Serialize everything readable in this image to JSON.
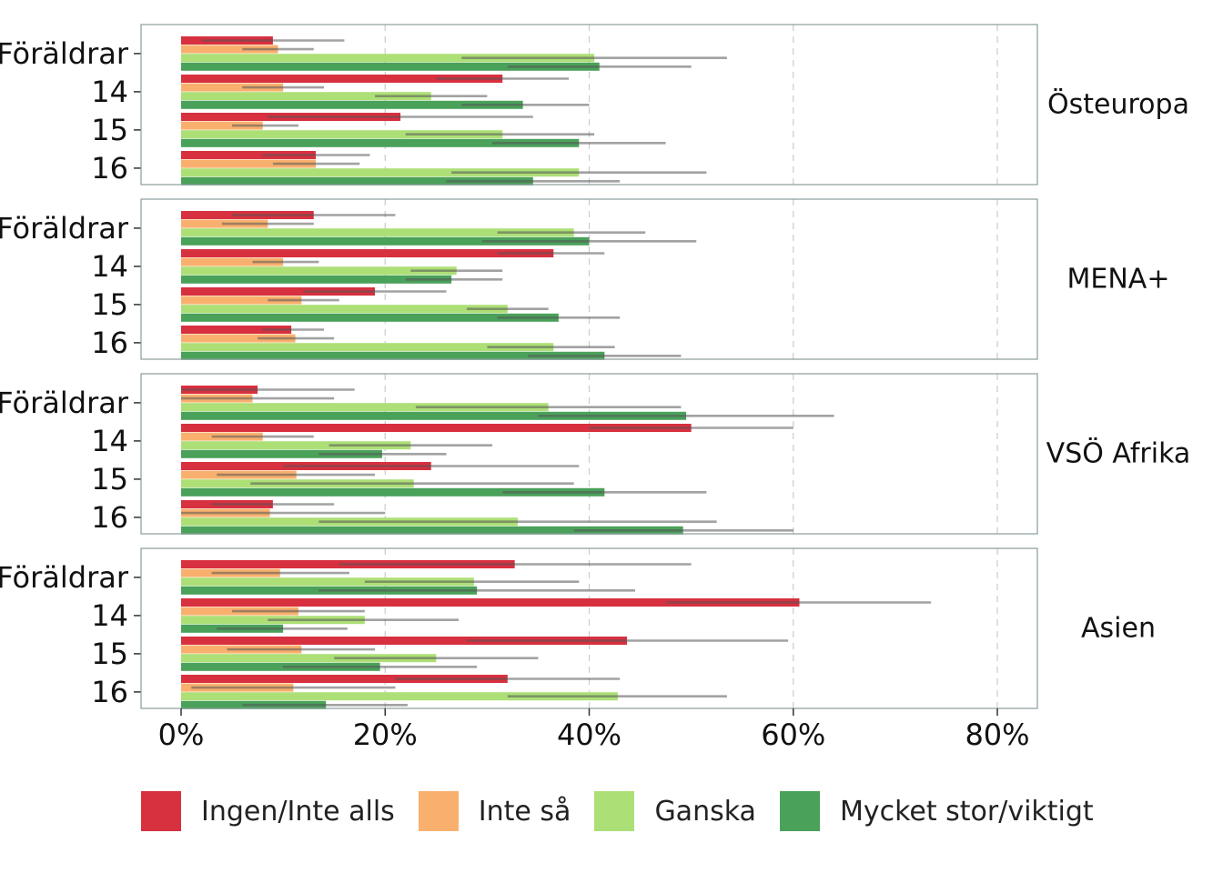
{
  "chart_data": {
    "type": "bar",
    "orientation": "horizontal",
    "x_axis": {
      "min": 0,
      "max": 0.84,
      "ticks": [
        0,
        0.2,
        0.4,
        0.6,
        0.8
      ],
      "tick_labels": [
        "0%",
        "20%",
        "40%",
        "60%",
        "80%"
      ],
      "grid": "dashed-vertical"
    },
    "groups": [
      "Föräldrar",
      "14",
      "15",
      "16"
    ],
    "series": [
      {
        "name": "Ingen/Inte alls",
        "color": "#d7303f"
      },
      {
        "name": "Inte så",
        "color": "#f9b06e"
      },
      {
        "name": "Ganska",
        "color": "#addf77"
      },
      {
        "name": "Mycket stor/viktigt",
        "color": "#4aa15a"
      }
    ],
    "panels": [
      {
        "label": "Östeuropa",
        "values": [
          [
            0.09,
            0.095,
            0.405,
            0.41
          ],
          [
            0.315,
            0.1,
            0.245,
            0.335
          ],
          [
            0.215,
            0.08,
            0.315,
            0.39
          ],
          [
            0.132,
            0.132,
            0.39,
            0.345
          ]
        ],
        "ci": [
          [
            [
              0.02,
              0.16
            ],
            [
              0.06,
              0.13
            ],
            [
              0.275,
              0.535
            ],
            [
              0.32,
              0.5
            ]
          ],
          [
            [
              0.25,
              0.38
            ],
            [
              0.06,
              0.14
            ],
            [
              0.19,
              0.3
            ],
            [
              0.275,
              0.4
            ]
          ],
          [
            [
              0.085,
              0.345
            ],
            [
              0.05,
              0.115
            ],
            [
              0.22,
              0.405
            ],
            [
              0.305,
              0.475
            ]
          ],
          [
            [
              0.08,
              0.185
            ],
            [
              0.09,
              0.175
            ],
            [
              0.265,
              0.515
            ],
            [
              0.26,
              0.43
            ]
          ]
        ]
      },
      {
        "label": "MENA+",
        "values": [
          [
            0.13,
            0.085,
            0.385,
            0.4
          ],
          [
            0.365,
            0.1,
            0.27,
            0.265
          ],
          [
            0.19,
            0.118,
            0.32,
            0.37
          ],
          [
            0.108,
            0.112,
            0.365,
            0.415
          ]
        ],
        "ci": [
          [
            [
              0.05,
              0.21
            ],
            [
              0.04,
              0.13
            ],
            [
              0.31,
              0.455
            ],
            [
              0.295,
              0.505
            ]
          ],
          [
            [
              0.31,
              0.415
            ],
            [
              0.07,
              0.135
            ],
            [
              0.225,
              0.315
            ],
            [
              0.22,
              0.315
            ]
          ],
          [
            [
              0.12,
              0.26
            ],
            [
              0.085,
              0.155
            ],
            [
              0.28,
              0.36
            ],
            [
              0.31,
              0.43
            ]
          ],
          [
            [
              0.08,
              0.14
            ],
            [
              0.075,
              0.15
            ],
            [
              0.3,
              0.425
            ],
            [
              0.34,
              0.49
            ]
          ]
        ]
      },
      {
        "label": "VSÖ Afrika",
        "values": [
          [
            0.075,
            0.07,
            0.36,
            0.495
          ],
          [
            0.5,
            0.08,
            0.225,
            0.197
          ],
          [
            0.245,
            0.113,
            0.228,
            0.415
          ],
          [
            0.09,
            0.087,
            0.33,
            0.492
          ]
        ],
        "ci": [
          [
            [
              0.0,
              0.17
            ],
            [
              0.0,
              0.15
            ],
            [
              0.23,
              0.49
            ],
            [
              0.35,
              0.64
            ]
          ],
          [
            [
              0.4,
              0.6
            ],
            [
              0.03,
              0.13
            ],
            [
              0.145,
              0.305
            ],
            [
              0.135,
              0.26
            ]
          ],
          [
            [
              0.1,
              0.39
            ],
            [
              0.035,
              0.19
            ],
            [
              0.068,
              0.385
            ],
            [
              0.315,
              0.515
            ]
          ],
          [
            [
              0.03,
              0.15
            ],
            [
              0.0,
              0.2
            ],
            [
              0.135,
              0.525
            ],
            [
              0.385,
              0.6
            ]
          ]
        ]
      },
      {
        "label": "Asien",
        "values": [
          [
            0.327,
            0.097,
            0.287,
            0.29
          ],
          [
            0.606,
            0.115,
            0.18,
            0.1
          ],
          [
            0.437,
            0.118,
            0.25,
            0.195
          ],
          [
            0.32,
            0.11,
            0.428,
            0.142
          ]
        ],
        "ci": [
          [
            [
              0.155,
              0.5
            ],
            [
              0.03,
              0.165
            ],
            [
              0.18,
              0.39
            ],
            [
              0.135,
              0.445
            ]
          ],
          [
            [
              0.475,
              0.735
            ],
            [
              0.05,
              0.18
            ],
            [
              0.085,
              0.272
            ],
            [
              0.035,
              0.163
            ]
          ],
          [
            [
              0.28,
              0.595
            ],
            [
              0.045,
              0.19
            ],
            [
              0.15,
              0.35
            ],
            [
              0.1,
              0.29
            ]
          ],
          [
            [
              0.21,
              0.43
            ],
            [
              0.01,
              0.21
            ],
            [
              0.32,
              0.535
            ],
            [
              0.06,
              0.222
            ]
          ]
        ]
      }
    ],
    "legend": {
      "position": "bottom"
    }
  }
}
